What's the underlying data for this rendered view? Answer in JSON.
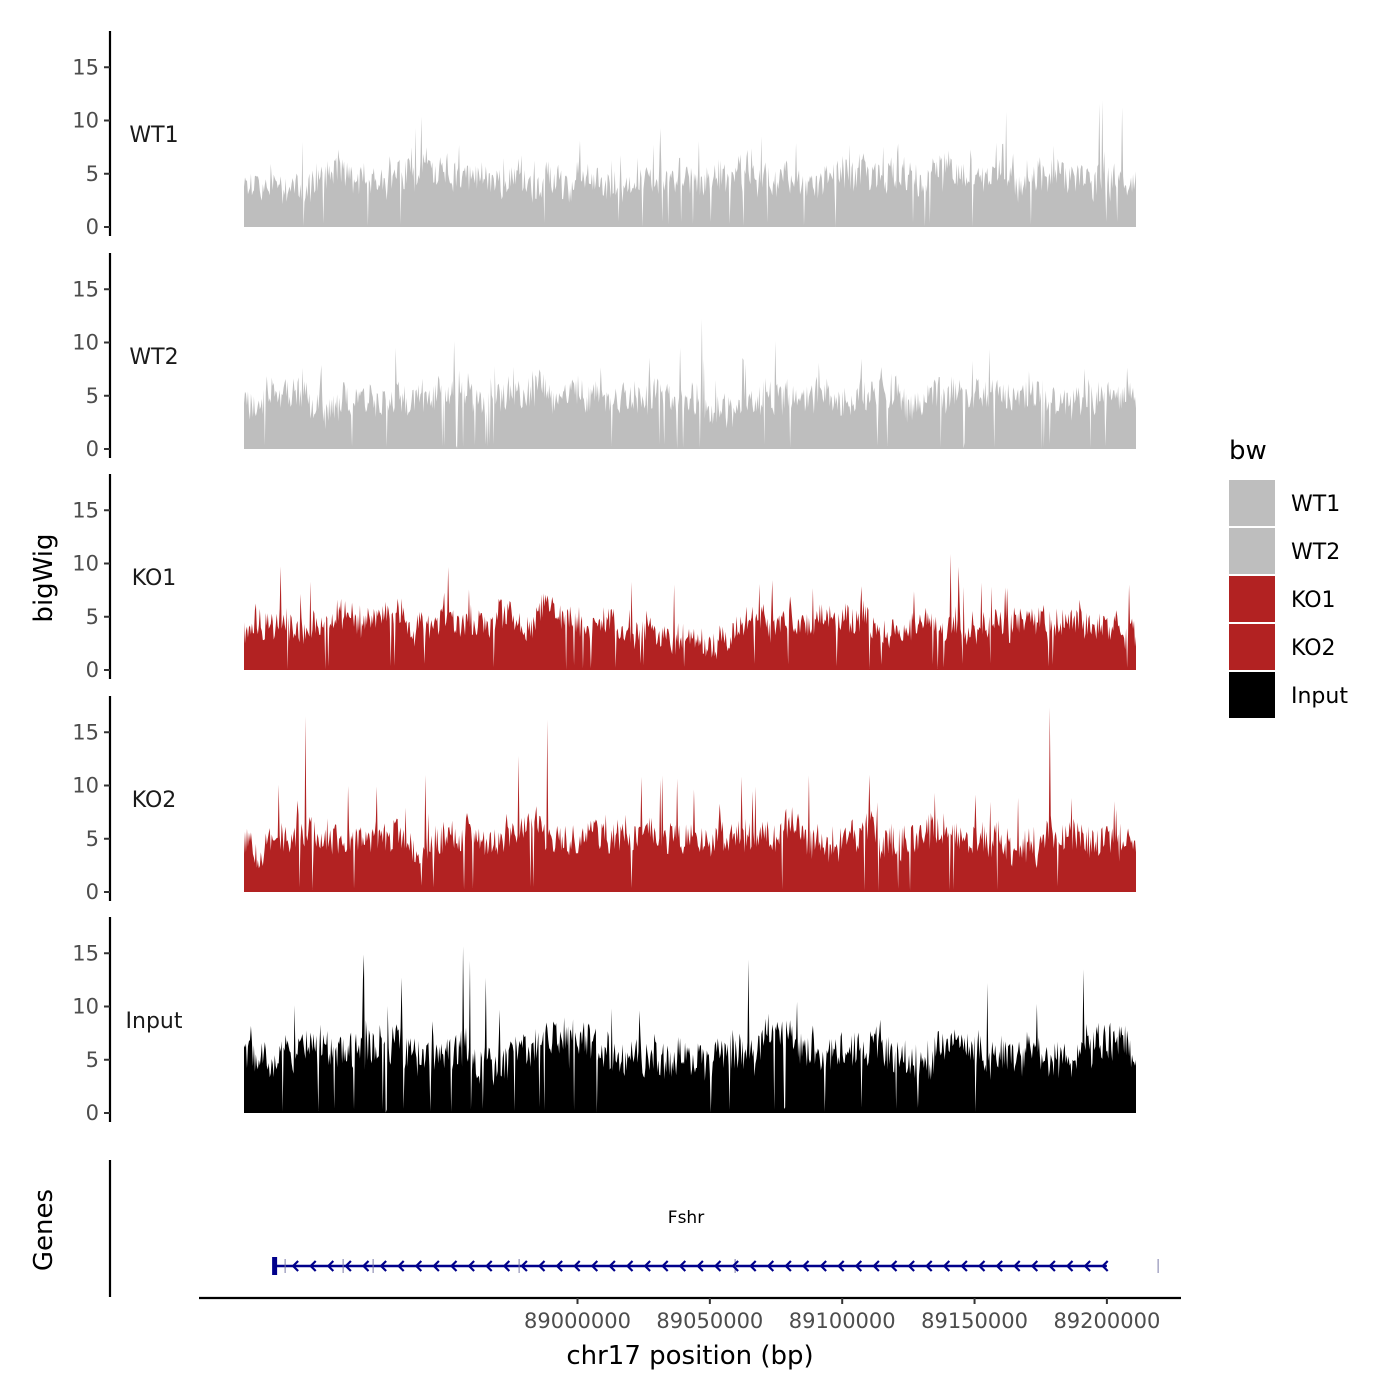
{
  "chart_data": {
    "type": "area",
    "ylabel": "bigWig",
    "xlabel": "chr17 position (bp)",
    "genes_label": "Genes",
    "ylim": [
      0,
      18
    ],
    "y_ticks": [
      0,
      5,
      10,
      15
    ],
    "region": {
      "start": 88885000,
      "end": 89202000
    },
    "x_ticks": [
      89000000,
      89050000,
      89100000,
      89150000,
      89200000
    ],
    "x_tick_labels": [
      "89000000",
      "89050000",
      "89100000",
      "89150000",
      "89200000"
    ],
    "legend": {
      "title": "bw",
      "items": [
        {
          "label": "WT1",
          "color": "#bebebe"
        },
        {
          "label": "WT2",
          "color": "#bebebe"
        },
        {
          "label": "KO1",
          "color": "#b22222"
        },
        {
          "label": "KO2",
          "color": "#b22222"
        },
        {
          "label": "Input",
          "color": "#000000"
        }
      ]
    },
    "tracks": [
      {
        "name": "WT1",
        "color": "#bebebe",
        "baseline": 3.2,
        "max": 12.2,
        "seed": 11
      },
      {
        "name": "WT2",
        "color": "#bebebe",
        "baseline": 3.4,
        "max": 13.0,
        "seed": 23
      },
      {
        "name": "KO1",
        "color": "#b22222",
        "baseline": 3.0,
        "max": 12.9,
        "seed": 37
      },
      {
        "name": "KO2",
        "color": "#b22222",
        "baseline": 3.5,
        "max": 17.4,
        "seed": 53
      },
      {
        "name": "Input",
        "color": "#000000",
        "baseline": 4.0,
        "max": 15.8,
        "seed": 71
      }
    ],
    "genes": [
      {
        "name": "Fshr",
        "start": 88885000,
        "end": 89200000,
        "strand": "-",
        "color": "#00008b"
      }
    ]
  }
}
